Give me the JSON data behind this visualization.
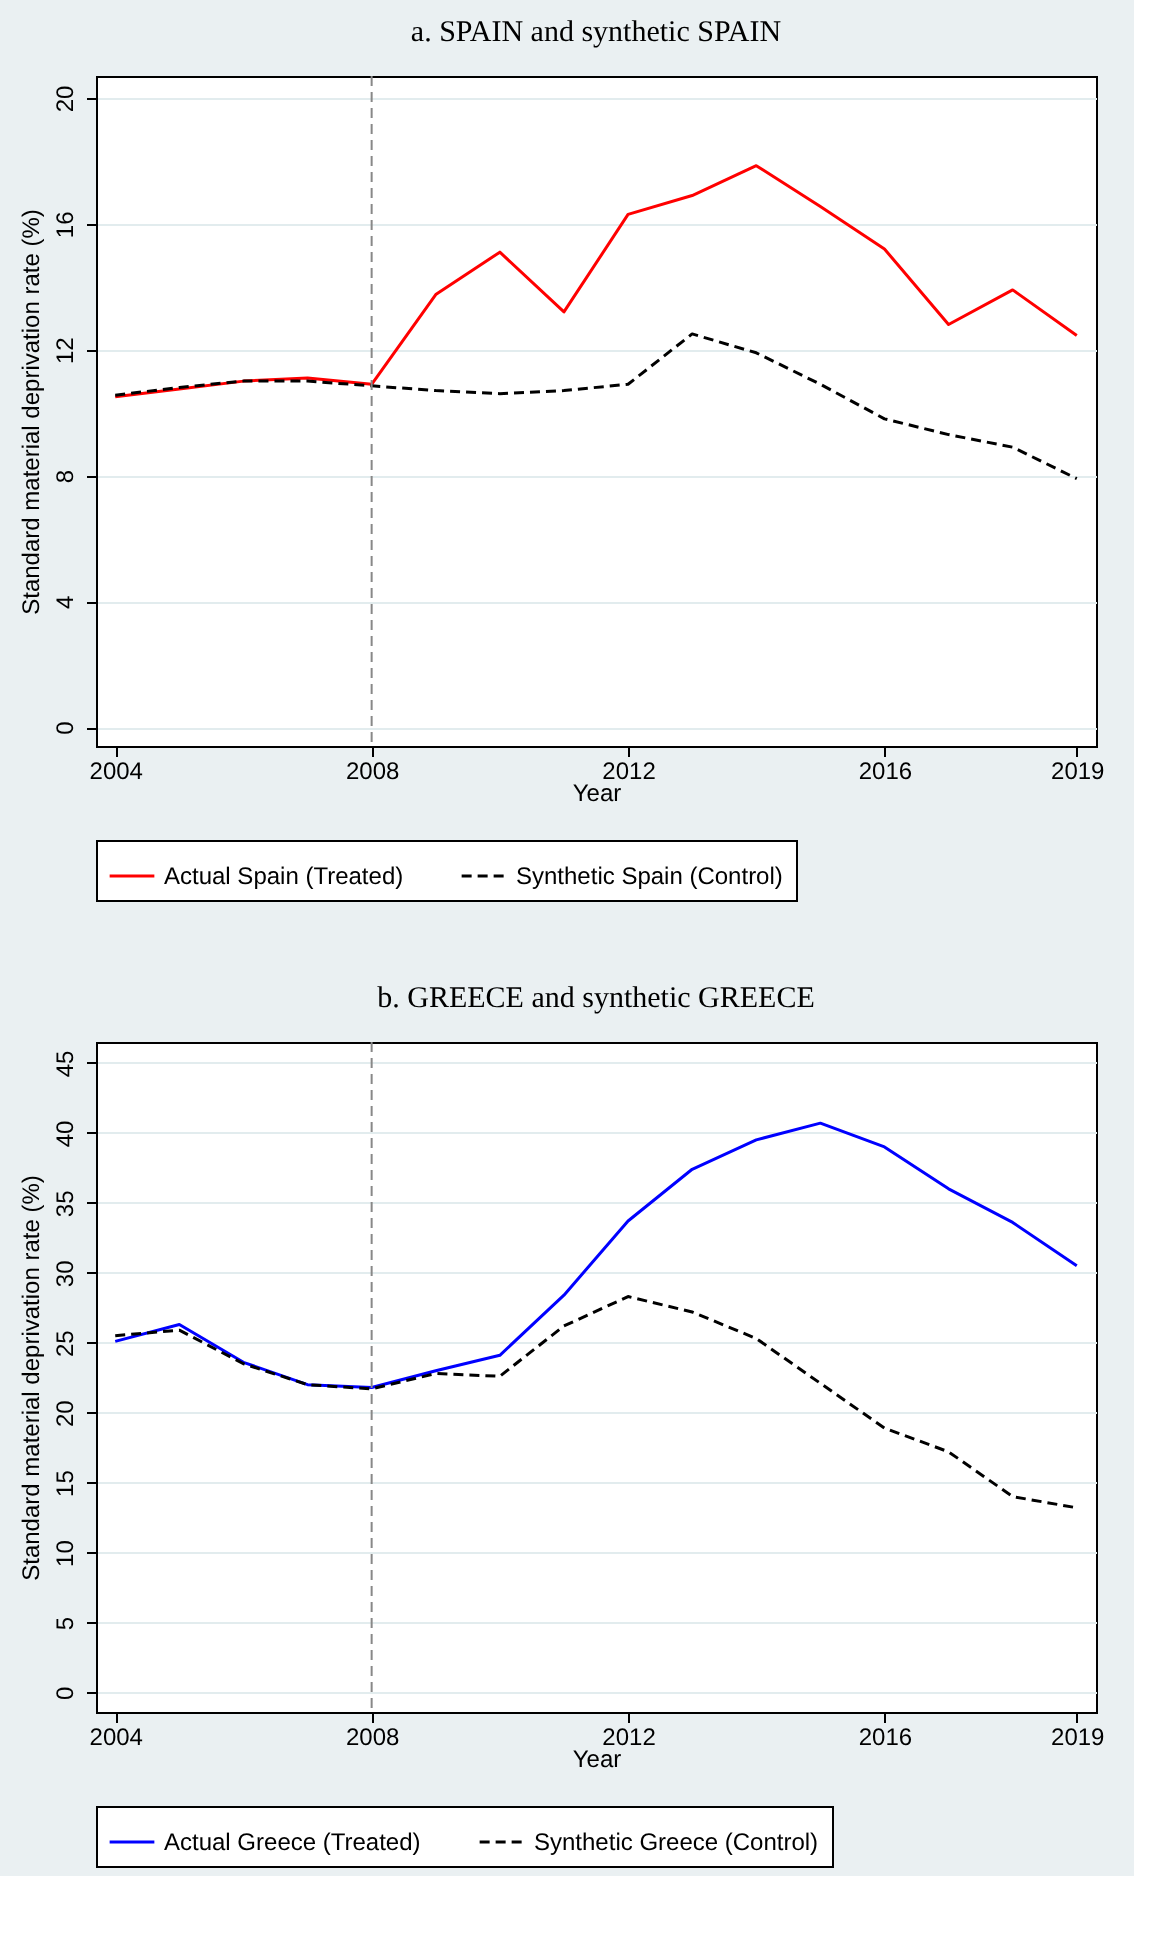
{
  "chart_data": [
    {
      "type": "line",
      "title": "a. SPAIN and synthetic SPAIN",
      "xlabel": "Year",
      "ylabel": "Standard material deprivation rate (%)",
      "x": [
        2004,
        2005,
        2006,
        2007,
        2008,
        2009,
        2010,
        2011,
        2012,
        2013,
        2014,
        2015,
        2016,
        2017,
        2018,
        2019
      ],
      "series": [
        {
          "name": "Actual Spain (Treated)",
          "color": "#ff0000",
          "line_style": "solid",
          "values": [
            10.5,
            10.75,
            11.0,
            11.1,
            10.9,
            13.75,
            15.1,
            13.2,
            16.3,
            16.9,
            17.85,
            16.55,
            15.2,
            12.8,
            13.9,
            12.45
          ]
        },
        {
          "name": "Synthetic Spain (Control)",
          "color": "#000000",
          "line_style": "dashed",
          "values": [
            10.55,
            10.8,
            11.0,
            11.0,
            10.85,
            10.7,
            10.6,
            10.7,
            10.9,
            12.5,
            11.9,
            10.9,
            9.8,
            9.3,
            8.9,
            7.9
          ]
        }
      ],
      "xlim": [
        2003.7,
        2019.3
      ],
      "xticks": [
        2004,
        2008,
        2012,
        2016,
        2019
      ],
      "ylim": [
        -0.6,
        20.7
      ],
      "yticks": [
        0,
        4,
        8,
        12,
        16,
        20
      ],
      "ref_lines": [
        {
          "axis": "x",
          "value": 2008,
          "color": "#888888",
          "line_style": "dashed"
        }
      ],
      "grid": "y",
      "legend": "bottom"
    },
    {
      "type": "line",
      "title": "b. GREECE and synthetic GREECE",
      "xlabel": "Year",
      "ylabel": "Standard material deprivation rate (%)",
      "x": [
        2004,
        2005,
        2006,
        2007,
        2008,
        2009,
        2010,
        2011,
        2012,
        2013,
        2014,
        2015,
        2016,
        2017,
        2018,
        2019
      ],
      "series": [
        {
          "name": "Actual Greece (Treated)",
          "color": "#0000ff",
          "line_style": "solid",
          "values": [
            25.1,
            26.3,
            23.6,
            22.0,
            21.8,
            23.0,
            24.1,
            28.4,
            33.7,
            37.4,
            39.5,
            40.7,
            39.0,
            36.0,
            33.6,
            30.5
          ]
        },
        {
          "name": "Synthetic Greece (Control)",
          "color": "#000000",
          "line_style": "dashed",
          "values": [
            25.5,
            25.9,
            23.5,
            22.0,
            21.7,
            22.8,
            22.6,
            26.2,
            28.3,
            27.2,
            25.3,
            22.1,
            18.9,
            17.2,
            14.0,
            13.2
          ]
        }
      ],
      "xlim": [
        2003.7,
        2019.3
      ],
      "xticks": [
        2004,
        2008,
        2012,
        2016,
        2019
      ],
      "ylim": [
        -1.4,
        46.5
      ],
      "yticks": [
        0,
        5,
        10,
        15,
        20,
        25,
        30,
        35,
        40,
        45
      ],
      "ref_lines": [
        {
          "axis": "x",
          "value": 2008,
          "color": "#888888",
          "line_style": "dashed"
        }
      ],
      "grid": "y",
      "legend": "bottom"
    }
  ]
}
